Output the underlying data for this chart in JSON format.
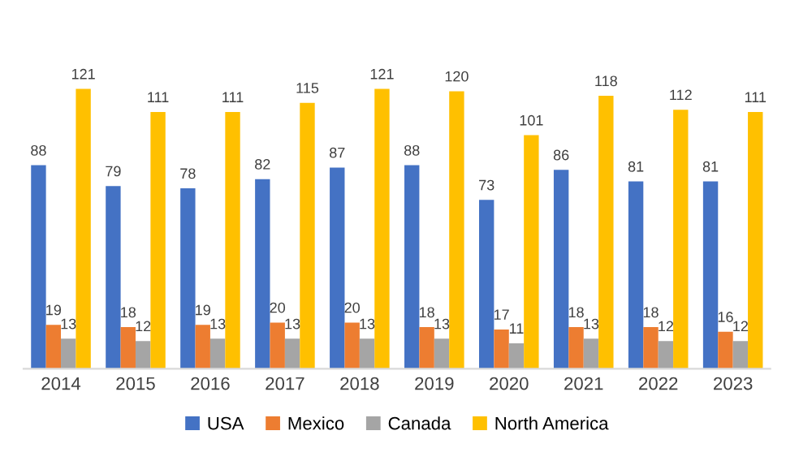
{
  "chart_data": {
    "type": "bar",
    "categories": [
      "2014",
      "2015",
      "2016",
      "2017",
      "2018",
      "2019",
      "2020",
      "2021",
      "2022",
      "2023"
    ],
    "series": [
      {
        "name": "USA",
        "color": "#4472c4",
        "values": [
          88,
          79,
          78,
          82,
          87,
          88,
          73,
          86,
          81,
          81
        ]
      },
      {
        "name": "Mexico",
        "color": "#ed7d31",
        "values": [
          19,
          18,
          19,
          20,
          20,
          18,
          17,
          18,
          18,
          16
        ]
      },
      {
        "name": "Canada",
        "color": "#a5a5a5",
        "values": [
          13,
          12,
          13,
          13,
          13,
          13,
          11,
          13,
          12,
          12
        ]
      },
      {
        "name": "North America",
        "color": "#ffc000",
        "values": [
          121,
          111,
          111,
          115,
          121,
          120,
          101,
          118,
          112,
          111
        ]
      }
    ],
    "data_labels": true,
    "legend": "bottom",
    "grid": false,
    "tick_labels": "x"
  }
}
